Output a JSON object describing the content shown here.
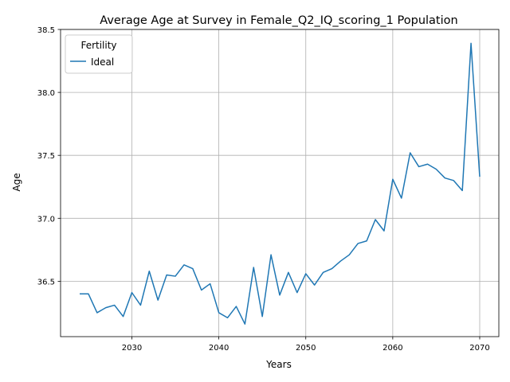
{
  "chart_data": {
    "type": "line",
    "title": "Average Age at Survey in Female_Q2_IQ_scoring_1 Population",
    "xlabel": "Years",
    "ylabel": "Age",
    "xlim": [
      2021.8,
      2072.2
    ],
    "ylim": [
      36.06,
      38.5
    ],
    "xticks": [
      2030,
      2040,
      2050,
      2060,
      2070
    ],
    "yticks": [
      36.5,
      37.0,
      37.5,
      38.0,
      38.5
    ],
    "grid": true,
    "legend": {
      "title": "Fertility",
      "placement": "top-left"
    },
    "series": [
      {
        "name": "Ideal",
        "color": "#1f77b4",
        "x": [
          2024,
          2025,
          2026,
          2027,
          2028,
          2029,
          2030,
          2031,
          2032,
          2033,
          2034,
          2035,
          2036,
          2037,
          2038,
          2039,
          2040,
          2041,
          2042,
          2043,
          2044,
          2045,
          2046,
          2047,
          2048,
          2049,
          2050,
          2051,
          2052,
          2053,
          2054,
          2055,
          2056,
          2057,
          2058,
          2059,
          2060,
          2061,
          2062,
          2063,
          2064,
          2065,
          2066,
          2067,
          2068,
          2069,
          2070
        ],
        "y": [
          36.4,
          36.4,
          36.25,
          36.29,
          36.31,
          36.22,
          36.41,
          36.31,
          36.58,
          36.35,
          36.55,
          36.54,
          36.63,
          36.6,
          36.43,
          36.48,
          36.25,
          36.21,
          36.3,
          36.16,
          36.61,
          36.22,
          36.71,
          36.39,
          36.57,
          36.41,
          36.56,
          36.47,
          36.57,
          36.6,
          36.66,
          36.71,
          36.8,
          36.82,
          36.99,
          36.9,
          37.31,
          37.16,
          37.52,
          37.41,
          37.43,
          37.39,
          37.32,
          37.3,
          37.22,
          38.39,
          37.33
        ]
      }
    ]
  }
}
